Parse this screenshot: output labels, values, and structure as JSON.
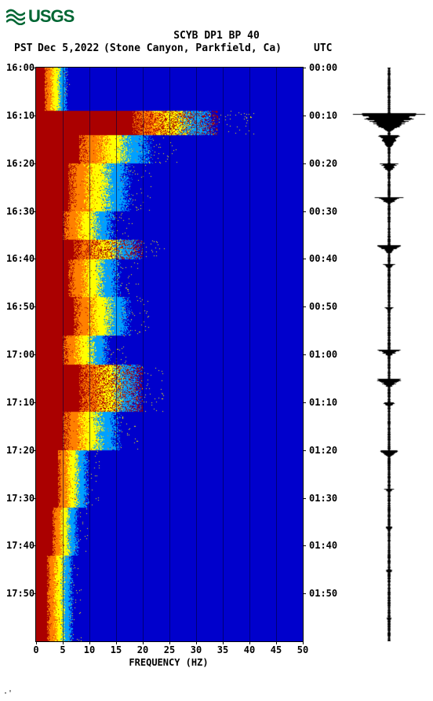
{
  "logo": {
    "text": "USGS"
  },
  "title": "SCYB DP1 BP 40",
  "header": {
    "pst": "PST",
    "date": "Dec 5,2022",
    "location": "(Stone Canyon, Parkfield, Ca)",
    "utc": "UTC"
  },
  "xaxis": {
    "label": "FREQUENCY (HZ)",
    "ticks": [
      0,
      5,
      10,
      15,
      20,
      25,
      30,
      35,
      40,
      45,
      50
    ],
    "min": 0,
    "max": 50
  },
  "yaxis_left": {
    "ticks": [
      "16:00",
      "16:10",
      "16:20",
      "16:30",
      "16:40",
      "16:50",
      "17:00",
      "17:10",
      "17:20",
      "17:30",
      "17:40",
      "17:50"
    ],
    "positions": [
      0,
      10,
      20,
      30,
      40,
      50,
      60,
      70,
      80,
      90,
      100,
      110
    ],
    "max": 120
  },
  "yaxis_right": {
    "ticks": [
      "00:00",
      "00:10",
      "00:20",
      "00:30",
      "00:40",
      "00:50",
      "01:00",
      "01:10",
      "01:20",
      "01:30",
      "01:40",
      "01:50"
    ]
  },
  "spectro": {
    "type": "spectrogram",
    "colormap": {
      "low": "#0000cc",
      "mid1": "#00a0ff",
      "mid2": "#ffff00",
      "mid3": "#ff8000",
      "high": "#aa0000"
    },
    "background": "#0000cc",
    "freq_max": 50,
    "time_max_min": 120,
    "bands": [
      {
        "t": 0,
        "t2": 9,
        "cutoff": 6,
        "hot": 1.5
      },
      {
        "t": 9,
        "t2": 14,
        "cutoff": 34,
        "hot": 18,
        "burst": true
      },
      {
        "t": 14,
        "t2": 20,
        "cutoff": 22,
        "hot": 8
      },
      {
        "t": 20,
        "t2": 30,
        "cutoff": 18,
        "hot": 6
      },
      {
        "t": 30,
        "t2": 36,
        "cutoff": 15,
        "hot": 5
      },
      {
        "t": 36,
        "t2": 40,
        "cutoff": 20,
        "hot": 7,
        "burst": true
      },
      {
        "t": 40,
        "t2": 48,
        "cutoff": 16,
        "hot": 6
      },
      {
        "t": 48,
        "t2": 56,
        "cutoff": 18,
        "hot": 7
      },
      {
        "t": 56,
        "t2": 62,
        "cutoff": 14,
        "hot": 5
      },
      {
        "t": 62,
        "t2": 72,
        "cutoff": 20,
        "hot": 8,
        "burst": true
      },
      {
        "t": 72,
        "t2": 80,
        "cutoff": 16,
        "hot": 5
      },
      {
        "t": 80,
        "t2": 92,
        "cutoff": 10,
        "hot": 4
      },
      {
        "t": 92,
        "t2": 102,
        "cutoff": 8,
        "hot": 3
      },
      {
        "t": 102,
        "t2": 120,
        "cutoff": 7,
        "hot": 2
      }
    ]
  },
  "seismogram": {
    "type": "waveform",
    "color": "#000000",
    "events": [
      {
        "t": 9.5,
        "amp": 1.0,
        "dur": 4
      },
      {
        "t": 14,
        "amp": 0.35,
        "dur": 3
      },
      {
        "t": 20,
        "amp": 0.25,
        "dur": 2
      },
      {
        "t": 27,
        "amp": 0.4,
        "dur": 1.5
      },
      {
        "t": 37,
        "amp": 0.35,
        "dur": 2
      },
      {
        "t": 41,
        "amp": 0.2,
        "dur": 1
      },
      {
        "t": 50,
        "amp": 0.15,
        "dur": 1
      },
      {
        "t": 59,
        "amp": 0.3,
        "dur": 1.5
      },
      {
        "t": 65,
        "amp": 0.4,
        "dur": 2
      },
      {
        "t": 70,
        "amp": 0.2,
        "dur": 1
      },
      {
        "t": 80,
        "amp": 0.3,
        "dur": 1.5
      },
      {
        "t": 88,
        "amp": 0.15,
        "dur": 1
      },
      {
        "t": 96,
        "amp": 0.1,
        "dur": 1
      },
      {
        "t": 105,
        "amp": 0.12,
        "dur": 1
      },
      {
        "t": 115,
        "amp": 0.08,
        "dur": 1
      }
    ],
    "noise_amp": 0.04
  }
}
